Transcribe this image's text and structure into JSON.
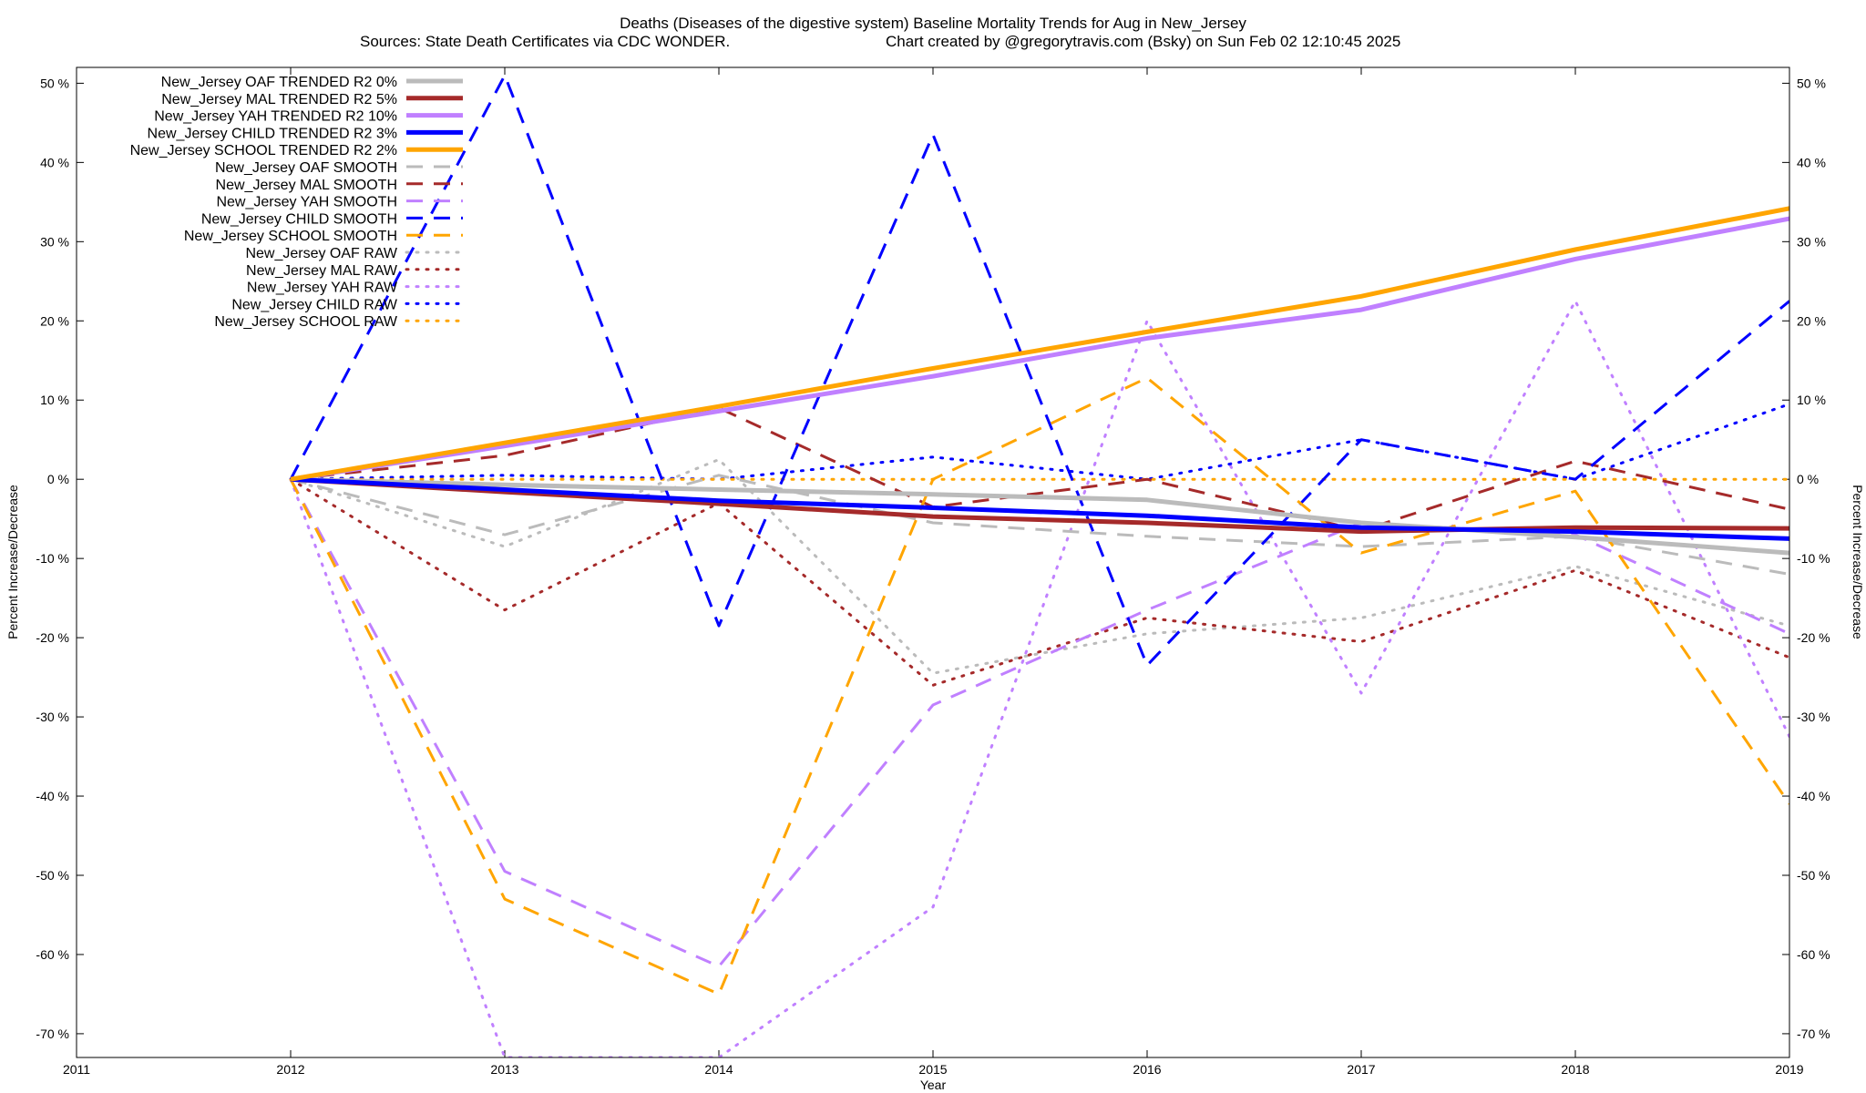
{
  "chart_data": {
    "type": "line",
    "title": "Deaths (Diseases of the digestive system)  Baseline Mortality Trends for Aug in New_Jersey",
    "subtitle_left": "Sources: State Death Certificates via CDC WONDER.",
    "subtitle_right": "Chart created by @gregorytravis.com (Bsky) on Sun Feb 02 12:10:45 2025",
    "xlabel": "Year",
    "ylabel_left": "Percent Increase/Decrease",
    "ylabel_right": "Percent Increase/Decrease",
    "xlim": [
      2011,
      2019
    ],
    "ylim": [
      -73,
      52
    ],
    "x_ticks": [
      "2011",
      "2012",
      "2013",
      "2014",
      "2015",
      "2016",
      "2017",
      "2018",
      "2019"
    ],
    "y_ticks": [
      50,
      40,
      30,
      20,
      10,
      0,
      -10,
      -20,
      -30,
      -40,
      -50,
      -60,
      -70
    ],
    "y_tick_labels": [
      "50 %",
      "40 %",
      "30 %",
      "20 %",
      "10 %",
      "0 %",
      "-10 %",
      "-20 %",
      "-30 %",
      "-40 %",
      "-50 %",
      "-60 %",
      "-70 %"
    ],
    "legend_position": "top-left",
    "x": [
      2012,
      2013,
      2014,
      2015,
      2016,
      2017,
      2018,
      2019
    ],
    "series": [
      {
        "name": "New_Jersey OAF TRENDED R2   0%",
        "style": "solid",
        "color": "#bbbbbb",
        "values": [
          0,
          -0.7,
          -1.3,
          -1.9,
          -2.6,
          -5.5,
          -7.3,
          -9.3
        ]
      },
      {
        "name": "New_Jersey MAL TRENDED R2   5%",
        "style": "solid",
        "color": "#a52a2a",
        "values": [
          0,
          -1.6,
          -3.1,
          -4.7,
          -5.5,
          -6.6,
          -6.1,
          -6.2
        ]
      },
      {
        "name": "New_Jersey YAH TRENDED R2  10%",
        "style": "solid",
        "color": "#c080ff",
        "values": [
          0,
          4.2,
          8.6,
          13.0,
          17.8,
          21.4,
          27.8,
          32.9
        ]
      },
      {
        "name": "New_Jersey CHILD TRENDED R2   3%",
        "style": "solid",
        "color": "#0000ff",
        "values": [
          0,
          -1.3,
          -2.7,
          -3.6,
          -4.6,
          -6.1,
          -6.6,
          -7.5
        ]
      },
      {
        "name": "New_Jersey SCHOOL TRENDED R2   2%",
        "style": "solid",
        "color": "#ffa500",
        "values": [
          0,
          4.6,
          9.2,
          14.0,
          18.6,
          23.1,
          29.0,
          34.2
        ]
      },
      {
        "name": "New_Jersey OAF SMOOTH",
        "style": "dashed",
        "color": "#bbbbbb",
        "values": [
          0,
          -7.0,
          0.5,
          -5.5,
          -7.2,
          -8.5,
          -7.2,
          -12.0
        ]
      },
      {
        "name": "New_Jersey MAL SMOOTH",
        "style": "dashed",
        "color": "#a52a2a",
        "values": [
          0,
          3.0,
          9.0,
          -3.5,
          0.0,
          -6.5,
          2.3,
          -3.8
        ]
      },
      {
        "name": "New_Jersey YAH SMOOTH",
        "style": "dashed",
        "color": "#c080ff",
        "values": [
          0,
          -49.5,
          -61.5,
          -28.5,
          -16.5,
          -5.5,
          -7.0,
          -19.5
        ]
      },
      {
        "name": "New_Jersey CHILD SMOOTH",
        "style": "dashed",
        "color": "#0000ff",
        "values": [
          0,
          51.0,
          -18.5,
          43.5,
          -23.5,
          5.0,
          0.0,
          22.5
        ]
      },
      {
        "name": "New_Jersey SCHOOL SMOOTH",
        "style": "dashed",
        "color": "#ffa500",
        "values": [
          0,
          -53.0,
          -65.0,
          0.0,
          12.8,
          -9.3,
          -1.5,
          -41.0
        ]
      },
      {
        "name": "New_Jersey OAF RAW",
        "style": "dotted",
        "color": "#bbbbbb",
        "values": [
          0,
          -8.5,
          2.5,
          -24.5,
          -19.5,
          -17.5,
          -11.0,
          -18.5
        ]
      },
      {
        "name": "New_Jersey MAL RAW",
        "style": "dotted",
        "color": "#a52a2a",
        "values": [
          0,
          -16.5,
          -3.0,
          -26.0,
          -17.5,
          -20.5,
          -11.5,
          -22.5
        ]
      },
      {
        "name": "New_Jersey YAH RAW",
        "style": "dotted",
        "color": "#c080ff",
        "values": [
          0,
          -73.0,
          -73.0,
          -54.0,
          20.0,
          -27.0,
          22.5,
          -32.5
        ]
      },
      {
        "name": "New_Jersey CHILD RAW",
        "style": "dotted",
        "color": "#0000ff",
        "values": [
          0,
          0.5,
          0.0,
          2.8,
          0.0,
          5.0,
          0.0,
          9.5
        ]
      },
      {
        "name": "New_Jersey SCHOOL RAW",
        "style": "dotted",
        "color": "#ffa500",
        "values": [
          0,
          0,
          0,
          0,
          0,
          0,
          0,
          0
        ]
      }
    ]
  }
}
